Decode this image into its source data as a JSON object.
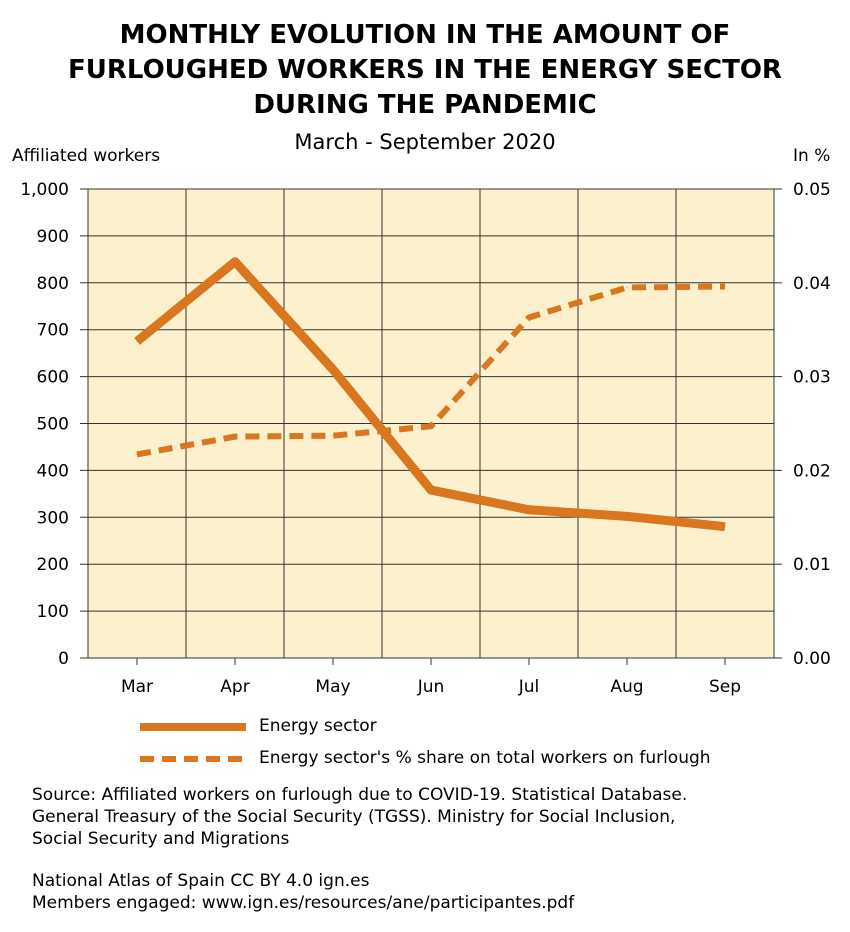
{
  "title_lines": [
    "MONTHLY EVOLUTION IN THE AMOUNT OF",
    "FURLOUGHED WORKERS IN THE ENERGY SECTOR",
    "DURING THE PANDEMIC"
  ],
  "subtitle": "March - September 2020",
  "colors": {
    "plot_bg": "#fcf1cc",
    "series": "#d9761f",
    "grid": "#333333"
  },
  "chart_data": {
    "type": "line",
    "title": "MONTHLY EVOLUTION IN THE AMOUNT OF FURLOUGHED WORKERS IN THE ENERGY SECTOR DURING THE PANDEMIC",
    "subtitle": "March - September 2020",
    "categories": [
      "Mar",
      "Apr",
      "May",
      "Jun",
      "Jul",
      "Aug",
      "Sep"
    ],
    "ylabel": "Affiliated workers",
    "y2label": "In %",
    "ylim": [
      0,
      1000
    ],
    "y2lim": [
      0,
      0.05
    ],
    "yticks": [
      "0",
      "100",
      "200",
      "300",
      "400",
      "500",
      "600",
      "700",
      "800",
      "900",
      "1,000"
    ],
    "y2ticks": [
      "0.00",
      "0.01",
      "0.02",
      "0.03",
      "0.04",
      "0.05"
    ],
    "grid": true,
    "legend_position": "bottom",
    "series": [
      {
        "name": "Energy sector",
        "axis": "left",
        "style": "solid",
        "values": [
          675,
          845,
          615,
          358,
          316,
          302,
          280
        ]
      },
      {
        "name": "Energy sector's % share on total workers on furlough",
        "axis": "right",
        "style": "dashed",
        "values": [
          0.0217,
          0.0236,
          0.0237,
          0.0247,
          0.0363,
          0.0395,
          0.0396
        ]
      }
    ]
  },
  "footer": {
    "source_lines": [
      "Source: Affiliated workers on furlough due to COVID-19. Statistical Database.",
      "General Treasury of the Social Security (TGSS). Ministry for Social Inclusion,",
      "Social Security and Migrations"
    ],
    "credit_lines": [
      "National Atlas of Spain CC BY 4.0 ign.es",
      "Members engaged: www.ign.es/resources/ane/participantes.pdf"
    ]
  }
}
